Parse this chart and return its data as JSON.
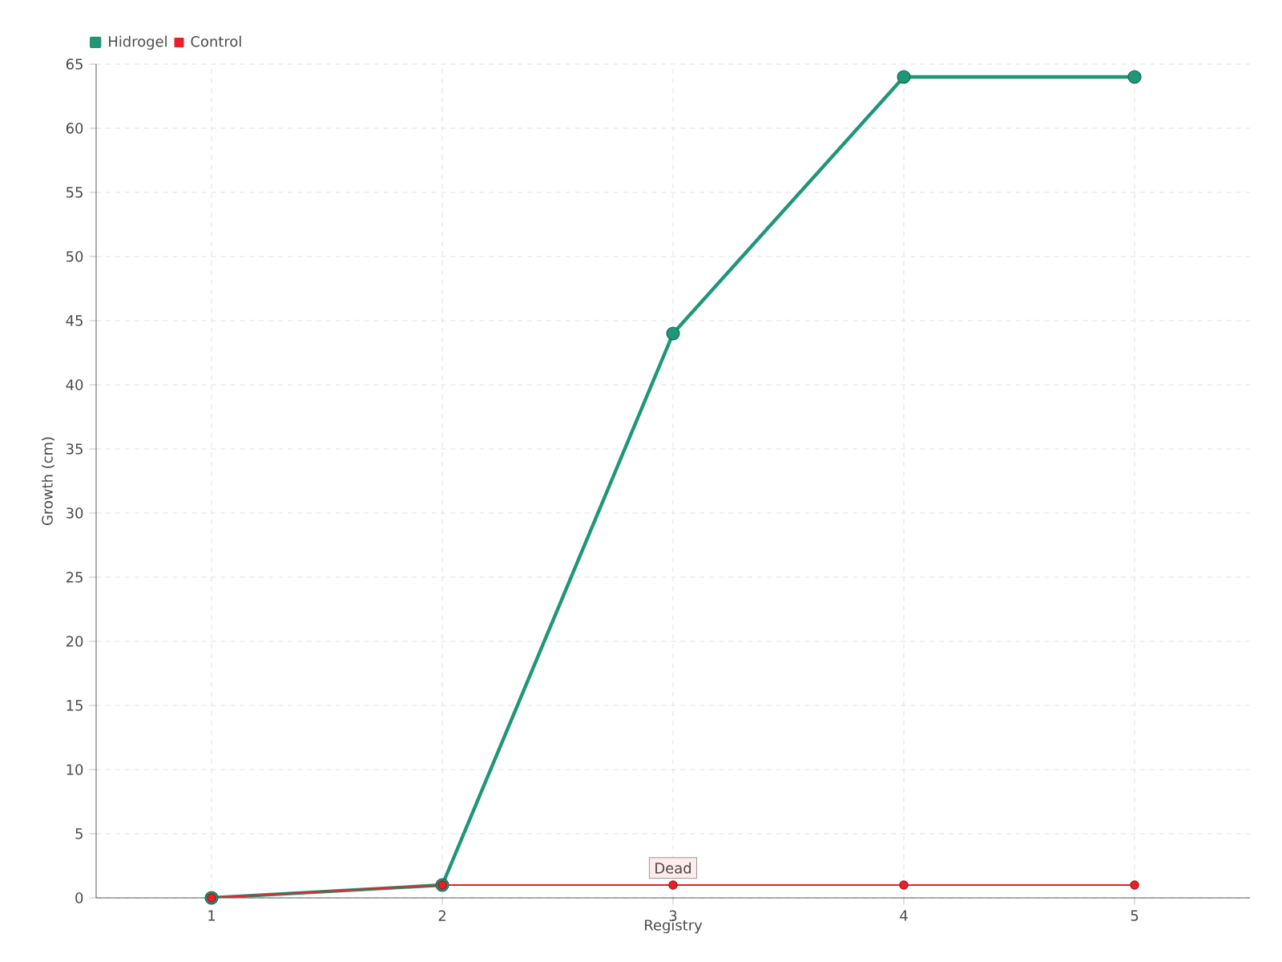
{
  "chart_data": {
    "type": "line",
    "xlabel": "Registry",
    "ylabel": "Growth (cm)",
    "x": [
      1,
      2,
      3,
      4,
      5
    ],
    "series": [
      {
        "name": "Hidrogel",
        "color": "#1f9678",
        "values": [
          0,
          1,
          44,
          64,
          64
        ]
      },
      {
        "name": "Control",
        "color": "#e8202a",
        "values": [
          0,
          1,
          1,
          1,
          1
        ]
      }
    ],
    "xlim": [
      0.5,
      5.5
    ],
    "xticks": [
      1,
      2,
      3,
      4,
      5
    ],
    "ylim": [
      0,
      65
    ],
    "yticks": [
      0,
      5,
      10,
      15,
      20,
      25,
      30,
      35,
      40,
      45,
      50,
      55,
      60,
      65
    ],
    "grid": true,
    "legend": "top left",
    "marker": "circle",
    "annotations": [
      {
        "text": "Dead",
        "x": 3,
        "y": 1
      }
    ]
  }
}
